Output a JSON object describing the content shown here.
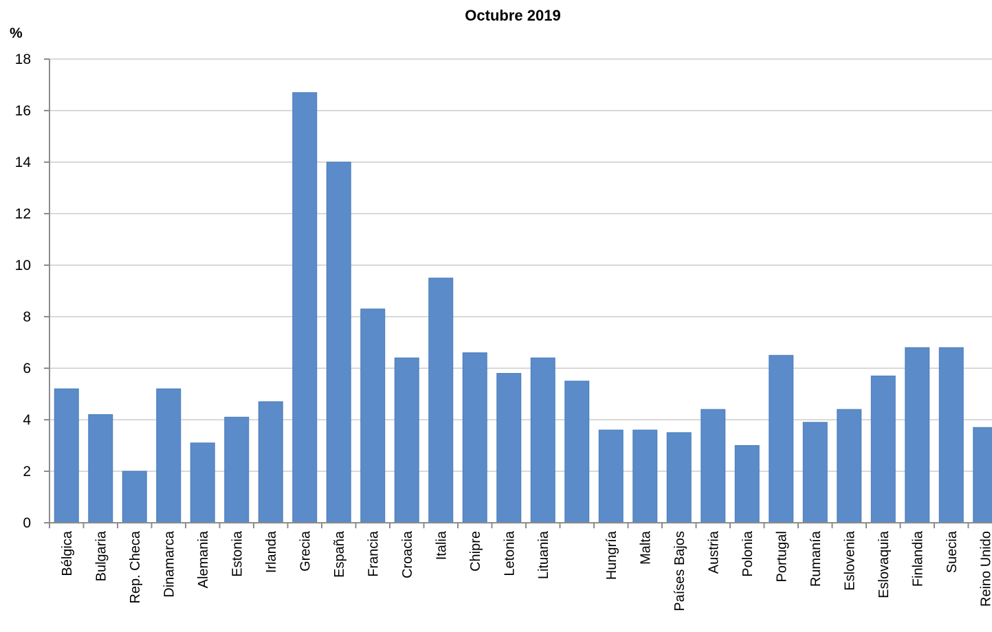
{
  "chart_data": {
    "type": "bar",
    "title": "Octubre 2019",
    "ylabel": "%",
    "xlabel": "",
    "ylim": [
      0,
      18
    ],
    "yticks": [
      0,
      2,
      4,
      6,
      8,
      10,
      12,
      14,
      16,
      18
    ],
    "grid": true,
    "bar_color": "#5b8bc9",
    "categories": [
      "Bélgica",
      "Bulgaria",
      "Rep. Checa",
      "Dinamarca",
      "Alemania",
      "Estonia",
      "Irlanda",
      "Grecia",
      "España",
      "Francia",
      "Croacia",
      "Italia",
      "Chipre",
      "Letonia",
      "Lituania",
      "",
      "Hungría",
      "Malta",
      "Países Bajos",
      "Austria",
      "Polonia",
      "Portugal",
      "Rumanía",
      "Eslovenia",
      "Eslovaquia",
      "Finlandia",
      "Suecia",
      "Reino Unido"
    ],
    "values": [
      5.2,
      4.2,
      2.0,
      5.2,
      3.1,
      4.1,
      4.7,
      16.7,
      14.0,
      8.3,
      6.4,
      9.5,
      6.6,
      5.8,
      6.4,
      5.5,
      3.6,
      3.6,
      3.5,
      4.4,
      3.0,
      6.5,
      3.9,
      4.4,
      5.7,
      6.8,
      6.8,
      3.7
    ]
  }
}
